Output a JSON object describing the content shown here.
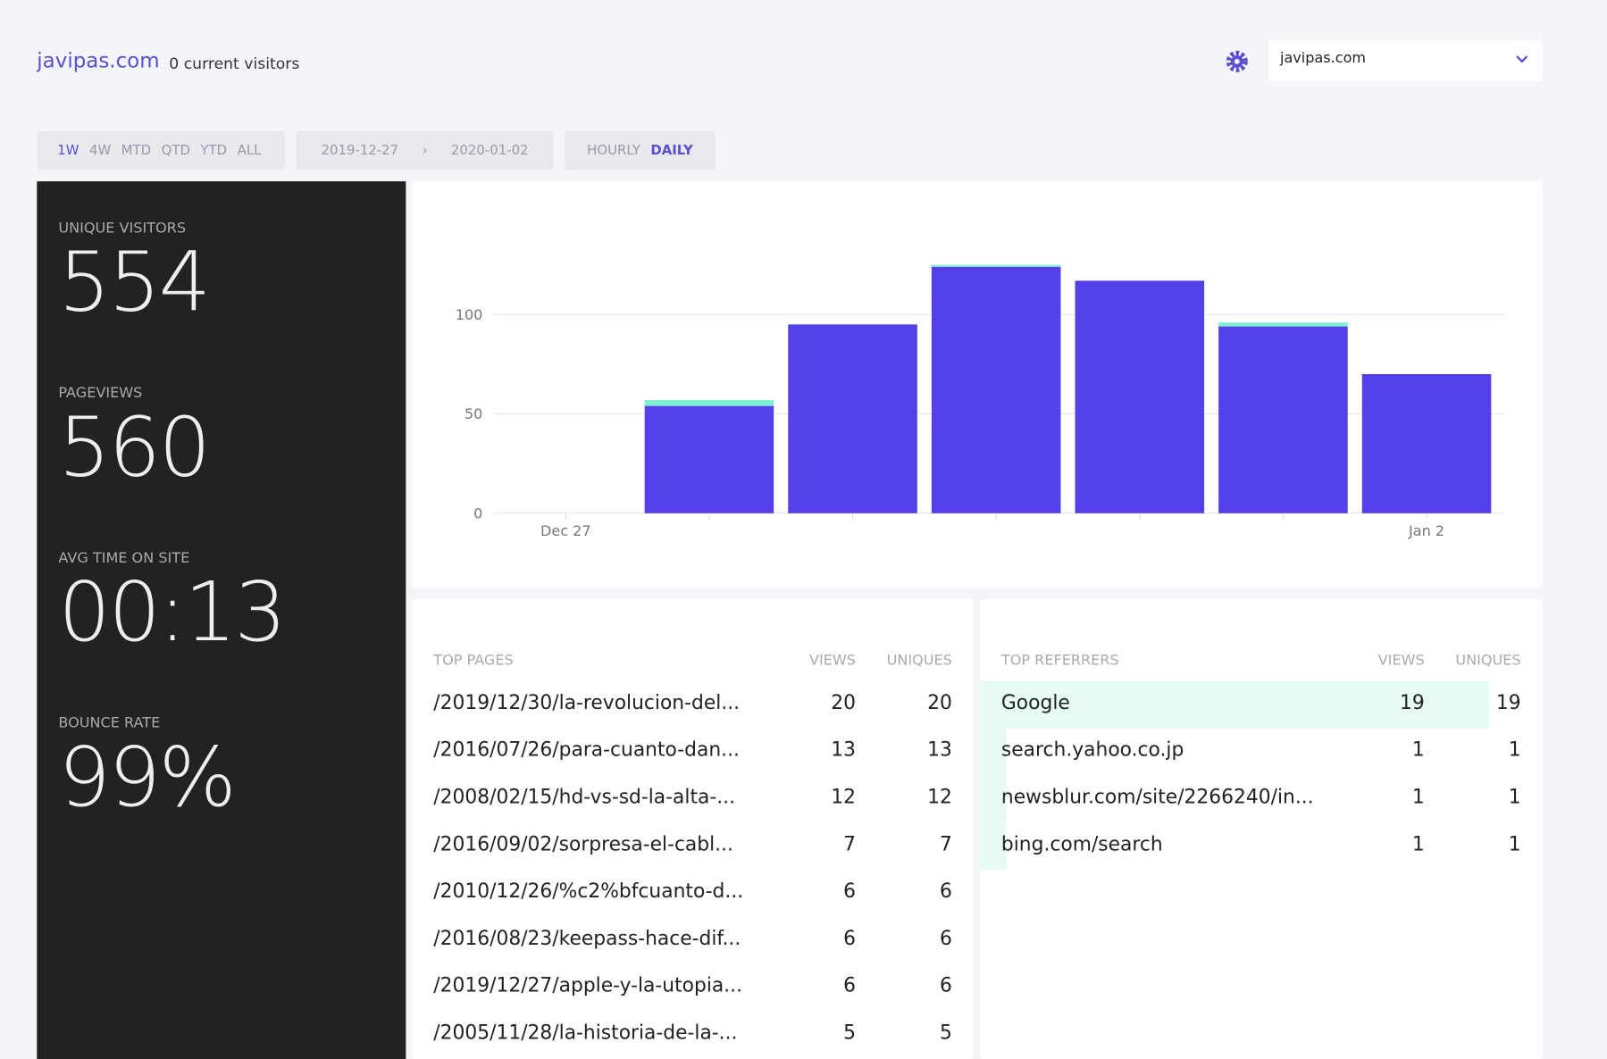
{
  "header": {
    "site": "javipas.com",
    "visitors": "0 current visitors",
    "selected_site": "javipas.com"
  },
  "filters": {
    "ranges": [
      "1W",
      "4W",
      "MTD",
      "QTD",
      "YTD",
      "ALL"
    ],
    "active_range": "1W",
    "date_from": "2019-12-27",
    "separator": "›",
    "date_to": "2020-01-02",
    "granularity": [
      "HOURLY",
      "DAILY"
    ],
    "active_granularity": "DAILY"
  },
  "stats": [
    {
      "label": "UNIQUE VISITORS",
      "value": 554
    },
    {
      "label": "PAGEVIEWS",
      "value": 560
    },
    {
      "label": "AVG TIME ON SITE",
      "value": "00:13"
    },
    {
      "label": "BOUNCE RATE",
      "value": "99%"
    }
  ],
  "chart_data": {
    "type": "stacked-bar",
    "categories": [
      "Dec 27",
      null,
      null,
      null,
      null,
      null,
      "Jan 2"
    ],
    "series": [
      {
        "color": "#5340e8",
        "values": [
          0,
          54,
          95,
          124,
          117,
          94,
          70
        ]
      },
      {
        "color": "#7ff0cf",
        "values": [
          0,
          3,
          0,
          1,
          0,
          2,
          0
        ]
      }
    ],
    "ylim": [
      0,
      130
    ],
    "yticks": [
      0,
      50,
      100
    ],
    "grid": true
  },
  "top_pages": {
    "headers": [
      "TOP PAGES",
      "VIEWS",
      "UNIQUES"
    ],
    "rows": [
      [
        "/2019/12/30/la-revolucion-del...",
        20,
        20
      ],
      [
        "/2016/07/26/para-cuanto-dan...",
        13,
        13
      ],
      [
        "/2008/02/15/hd-vs-sd-la-alta-...",
        12,
        12
      ],
      [
        "/2016/09/02/sorpresa-el-cabl...",
        7,
        7
      ],
      [
        "/2010/12/26/%c2%bfcuanto-d...",
        6,
        6
      ],
      [
        "/2016/08/23/keepass-hace-dif...",
        6,
        6
      ],
      [
        "/2019/12/27/apple-y-la-utopia...",
        6,
        6
      ],
      [
        "/2005/11/28/la-historia-de-la-...",
        5,
        5
      ]
    ]
  },
  "top_referrers": {
    "headers": [
      "TOP REFERRERS",
      "VIEWS",
      "UNIQUES"
    ],
    "rows": [
      [
        "Google",
        19,
        19
      ],
      [
        "search.yahoo.co.jp",
        1,
        1
      ],
      [
        "newsblur.com/site/2266240/in...",
        1,
        1
      ],
      [
        "bing.com/search",
        1,
        1
      ]
    ]
  }
}
